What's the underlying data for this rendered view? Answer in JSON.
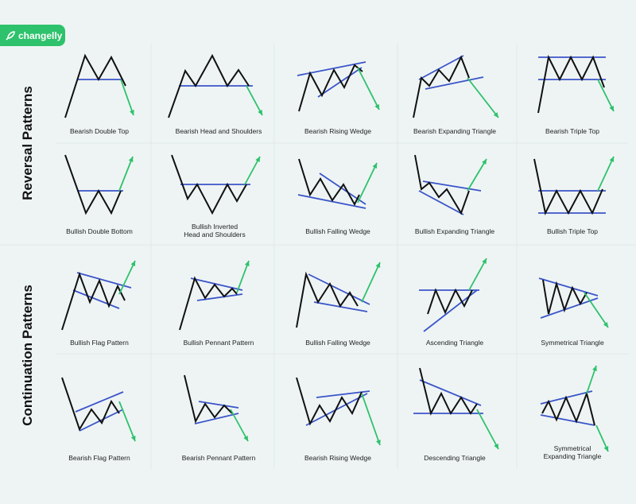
{
  "brand": {
    "name": "changelly",
    "color": "#2dc26b"
  },
  "colors": {
    "price_line": "#111111",
    "trend_line": "#3b55c9",
    "breakout_arrow": "#2dc26b"
  },
  "sections": [
    {
      "title": "Reversal Patterns"
    },
    {
      "title": "Continuation Patterns"
    }
  ],
  "patterns": [
    {
      "label": "Bearish Double Top"
    },
    {
      "label": "Bearish Head and Shoulders"
    },
    {
      "label": "Bearish Rising Wedge"
    },
    {
      "label": "Bearish Expanding Triangle"
    },
    {
      "label": "Bearish Triple Top"
    },
    {
      "label": "Bullish Double Bottom"
    },
    {
      "label": "Bullish Inverted",
      "label2": "Head and Shoulders"
    },
    {
      "label": "Bullish Falling Wedge"
    },
    {
      "label": "Bullish Expanding Triangle"
    },
    {
      "label": "Bullish Triple Top"
    },
    {
      "label": "Bullish Flag Pattern"
    },
    {
      "label": "Bullish Pennant Pattern"
    },
    {
      "label": "Bullish Falling Wedge"
    },
    {
      "label": "Ascending Triangle"
    },
    {
      "label": "Symmetrical Triangle"
    },
    {
      "label": "Bearish Flag Pattern"
    },
    {
      "label": "Bearish Pennant Pattern"
    },
    {
      "label": "Bearish Rising Wedge"
    },
    {
      "label": "Descending Triangle"
    },
    {
      "label": "Symmetrical",
      "label2": "Expanding Triangle"
    }
  ]
}
